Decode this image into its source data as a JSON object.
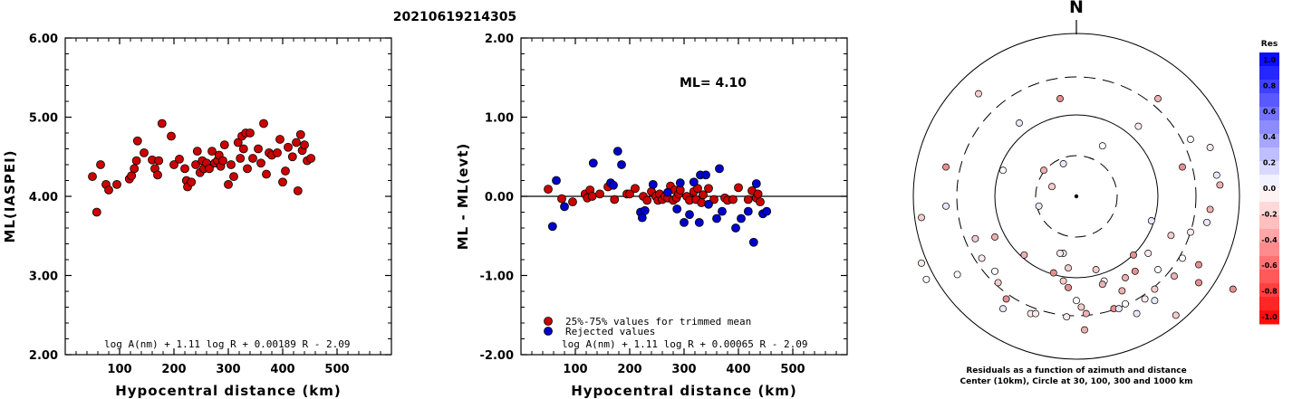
{
  "title": "20210619214305",
  "colors": {
    "red": "#cc0000",
    "blue": "#0000cc"
  },
  "chart_data": [
    {
      "type": "scatter",
      "xlabel": "Hypocentral distance (km)",
      "ylabel": "ML(IASPEI)",
      "xlim": [
        0,
        600
      ],
      "ylim": [
        2.0,
        6.0
      ],
      "xticks": [
        "100",
        "200",
        "300",
        "400",
        "500"
      ],
      "yticks": [
        "2.00",
        "3.00",
        "4.00",
        "5.00",
        "6.00"
      ],
      "formula": "log A(nm) + 1.11 log R + 0.00189 R - 2.09",
      "series": [
        {
          "color": "#cc0000",
          "points": [
            [
              50,
              4.25
            ],
            [
              58,
              3.8
            ],
            [
              65,
              4.4
            ],
            [
              75,
              4.15
            ],
            [
              80,
              4.08
            ],
            [
              95,
              4.15
            ],
            [
              118,
              4.22
            ],
            [
              122,
              4.26
            ],
            [
              127,
              4.35
            ],
            [
              131,
              4.45
            ],
            [
              133,
              4.7
            ],
            [
              145,
              4.55
            ],
            [
              160,
              4.46
            ],
            [
              165,
              4.35
            ],
            [
              170,
              4.27
            ],
            [
              172,
              4.45
            ],
            [
              178,
              4.92
            ],
            [
              195,
              4.76
            ],
            [
              200,
              4.4
            ],
            [
              210,
              4.47
            ],
            [
              220,
              4.35
            ],
            [
              223,
              4.2
            ],
            [
              225,
              4.12
            ],
            [
              232,
              4.18
            ],
            [
              240,
              4.4
            ],
            [
              243,
              4.57
            ],
            [
              248,
              4.3
            ],
            [
              252,
              4.45
            ],
            [
              255,
              4.35
            ],
            [
              260,
              4.42
            ],
            [
              265,
              4.35
            ],
            [
              270,
              4.57
            ],
            [
              275,
              4.42
            ],
            [
              280,
              4.45
            ],
            [
              283,
              4.52
            ],
            [
              286,
              4.38
            ],
            [
              290,
              4.45
            ],
            [
              293,
              4.65
            ],
            [
              300,
              4.15
            ],
            [
              305,
              4.4
            ],
            [
              310,
              4.25
            ],
            [
              318,
              4.68
            ],
            [
              322,
              4.48
            ],
            [
              325,
              4.76
            ],
            [
              328,
              4.6
            ],
            [
              332,
              4.8
            ],
            [
              335,
              4.35
            ],
            [
              340,
              4.8
            ],
            [
              345,
              4.48
            ],
            [
              355,
              4.6
            ],
            [
              360,
              4.42
            ],
            [
              365,
              4.92
            ],
            [
              370,
              4.28
            ],
            [
              375,
              4.55
            ],
            [
              380,
              4.52
            ],
            [
              390,
              4.55
            ],
            [
              395,
              4.72
            ],
            [
              400,
              4.18
            ],
            [
              405,
              4.32
            ],
            [
              410,
              4.62
            ],
            [
              418,
              4.5
            ],
            [
              425,
              4.68
            ],
            [
              428,
              4.07
            ],
            [
              433,
              4.78
            ],
            [
              436,
              4.58
            ],
            [
              440,
              4.65
            ],
            [
              445,
              4.45
            ],
            [
              452,
              4.48
            ]
          ]
        }
      ]
    },
    {
      "type": "scatter",
      "xlabel": "Hypocentral distance (km)",
      "ylabel": "ML - ML(evt)",
      "xlim": [
        0,
        600
      ],
      "ylim": [
        -2.0,
        2.0
      ],
      "xticks": [
        "100",
        "200",
        "300",
        "400",
        "500"
      ],
      "yticks": [
        "-2.00",
        "-1.00",
        "0.00",
        "1.00",
        "2.00"
      ],
      "ml_label": "ML= 4.10",
      "formula": "log A(nm) + 1.11 log R + 0.00065 R - 2.09",
      "legend": [
        "25%-75% values for trimmed mean",
        "Rejected values"
      ],
      "series": [
        {
          "name": "25%-75% values for trimmed mean",
          "color": "#cc0000",
          "points": [
            [
              50,
              0.09
            ],
            [
              75,
              -0.03
            ],
            [
              95,
              -0.07
            ],
            [
              118,
              0.03
            ],
            [
              122,
              -0.02
            ],
            [
              127,
              0.08
            ],
            [
              131,
              0.0
            ],
            [
              145,
              0.03
            ],
            [
              160,
              0.12
            ],
            [
              172,
              -0.04
            ],
            [
              195,
              0.03
            ],
            [
              200,
              0.03
            ],
            [
              210,
              0.1
            ],
            [
              225,
              0.0
            ],
            [
              232,
              -0.05
            ],
            [
              240,
              0.06
            ],
            [
              248,
              0.0
            ],
            [
              252,
              -0.05
            ],
            [
              255,
              0.03
            ],
            [
              260,
              -0.04
            ],
            [
              265,
              0.0
            ],
            [
              270,
              -0.02
            ],
            [
              275,
              0.13
            ],
            [
              280,
              -0.05
            ],
            [
              283,
              0.08
            ],
            [
              286,
              -0.02
            ],
            [
              290,
              0.03
            ],
            [
              293,
              0.08
            ],
            [
              305,
              0.0
            ],
            [
              310,
              -0.05
            ],
            [
              318,
              0.06
            ],
            [
              322,
              -0.04
            ],
            [
              325,
              0.1
            ],
            [
              332,
              -0.08
            ],
            [
              335,
              0.02
            ],
            [
              345,
              0.1
            ],
            [
              355,
              -0.04
            ],
            [
              375,
              -0.02
            ],
            [
              380,
              -0.05
            ],
            [
              390,
              -0.04
            ],
            [
              400,
              0.11
            ],
            [
              418,
              -0.04
            ],
            [
              425,
              0.07
            ],
            [
              433,
              -0.02
            ],
            [
              436,
              0.03
            ],
            [
              440,
              -0.07
            ]
          ]
        },
        {
          "name": "Rejected values",
          "color": "#0000cc",
          "points": [
            [
              58,
              -0.38
            ],
            [
              65,
              0.2
            ],
            [
              80,
              -0.13
            ],
            [
              133,
              0.42
            ],
            [
              165,
              0.17
            ],
            [
              170,
              0.14
            ],
            [
              178,
              0.57
            ],
            [
              185,
              0.4
            ],
            [
              220,
              -0.2
            ],
            [
              223,
              -0.27
            ],
            [
              228,
              -0.18
            ],
            [
              243,
              0.15
            ],
            [
              270,
              0.05
            ],
            [
              287,
              -0.16
            ],
            [
              293,
              0.17
            ],
            [
              300,
              -0.33
            ],
            [
              310,
              -0.23
            ],
            [
              318,
              0.18
            ],
            [
              328,
              -0.33
            ],
            [
              330,
              0.27
            ],
            [
              340,
              0.27
            ],
            [
              345,
              -0.1
            ],
            [
              360,
              -0.28
            ],
            [
              365,
              0.35
            ],
            [
              370,
              -0.19
            ],
            [
              395,
              -0.4
            ],
            [
              405,
              -0.28
            ],
            [
              418,
              -0.19
            ],
            [
              428,
              -0.58
            ],
            [
              433,
              0.16
            ],
            [
              445,
              -0.22
            ],
            [
              452,
              -0.19
            ]
          ]
        }
      ]
    },
    {
      "type": "polar",
      "north_label": "N",
      "caption": [
        "Residuals as a function of azimuth and distance",
        "Center (10km), Circle at 30, 100, 300 and 1000 km"
      ],
      "colorbar": {
        "title": "Res",
        "labels": [
          "1.0",
          "0.8",
          "0.6",
          "0.4",
          "0.2",
          "0.0",
          "-0.2",
          "-0.4",
          "-0.6",
          "-0.8",
          "-1.0"
        ]
      },
      "stations": [
        [
          -0.45,
          -0.69
        ],
        [
          -0.06,
          -0.74
        ],
        [
          0.03,
          -0.68
        ],
        [
          0.06,
          -0.72
        ],
        [
          0.23,
          -0.69
        ],
        [
          0.3,
          -0.66
        ],
        [
          0.37,
          -0.72
        ],
        [
          0.48,
          -0.57
        ],
        [
          0.6,
          -0.49
        ],
        [
          0.75,
          -0.53
        ],
        [
          0.65,
          -0.38
        ],
        [
          0.7,
          -0.22
        ],
        [
          0.8,
          -0.16
        ],
        [
          0.82,
          -0.08
        ],
        [
          0.96,
          -0.57
        ],
        [
          -0.92,
          -0.51
        ],
        [
          -0.95,
          -0.41
        ],
        [
          -0.95,
          -0.13
        ],
        [
          -0.8,
          -0.06
        ],
        [
          -0.8,
          0.18
        ],
        [
          -0.45,
          0.16
        ],
        [
          -0.28,
          -0.72
        ],
        [
          -0.08,
          -0.52
        ],
        [
          -0.32,
          -0.36
        ],
        [
          -0.08,
          -0.35
        ],
        [
          0.17,
          -0.52
        ],
        [
          0.42,
          -0.63
        ],
        [
          0.61,
          -0.73
        ],
        [
          0.88,
          0.07
        ],
        [
          0.65,
          0.18
        ],
        [
          0.86,
          0.13
        ],
        [
          -0.1,
          -0.35
        ],
        [
          0.12,
          -0.45
        ],
        [
          0.05,
          -0.82
        ],
        [
          -0.05,
          -0.56
        ],
        [
          -0.73,
          -0.48
        ],
        [
          -0.23,
          -0.06
        ],
        [
          -0.15,
          0.06
        ],
        [
          -0.2,
          0.16
        ],
        [
          0.35,
          -0.36
        ],
        [
          0.7,
          0.35
        ],
        [
          0.82,
          0.3
        ],
        [
          0.48,
          -0.64
        ],
        [
          0.28,
          -0.58
        ],
        [
          -0.14,
          -0.47
        ],
        [
          0.0,
          -0.64
        ],
        [
          0.44,
          -0.35
        ],
        [
          0.58,
          -0.24
        ],
        [
          0.46,
          -0.15
        ],
        [
          -0.43,
          -0.63
        ],
        [
          -0.5,
          -0.46
        ],
        [
          -0.58,
          -0.38
        ],
        [
          -0.62,
          -0.26
        ],
        [
          -0.5,
          -0.25
        ],
        [
          -0.08,
          0.2
        ],
        [
          0.16,
          0.31
        ],
        [
          0.38,
          0.43
        ],
        [
          -0.05,
          -0.44
        ],
        [
          0.16,
          -0.54
        ],
        [
          0.36,
          -0.46
        ],
        [
          0.26,
          -0.69
        ],
        [
          -0.25,
          -0.72
        ],
        [
          -0.48,
          -0.53
        ],
        [
          0.3,
          -0.5
        ],
        [
          0.75,
          -0.42
        ],
        [
          0.5,
          -0.45
        ],
        [
          -0.35,
          0.45
        ],
        [
          -0.6,
          0.63
        ],
        [
          0.5,
          0.6
        ],
        [
          -0.1,
          0.6
        ]
      ]
    }
  ]
}
